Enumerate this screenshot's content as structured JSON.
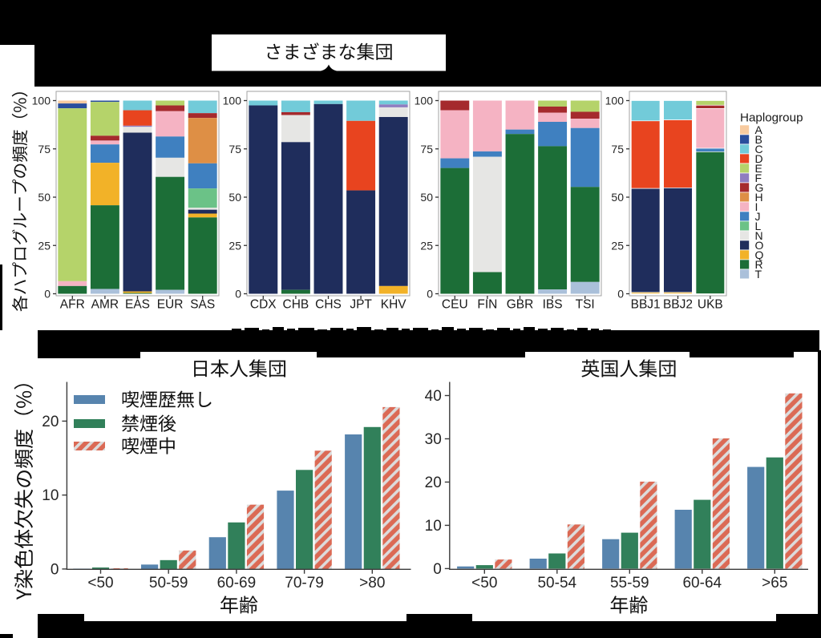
{
  "figure": {
    "background": "#ffffff",
    "redaction_color": "#000000",
    "annotation": {
      "label": "さまざまな集団"
    }
  },
  "chart_data": [
    {
      "type": "bar",
      "stacked": true,
      "title": "さまざまな集団",
      "ylabel": "各ハプログループの頻度（%）",
      "ylim": [
        0,
        100
      ],
      "yticks": [
        0,
        25,
        50,
        75,
        100
      ],
      "grid": false,
      "legend_position": "right",
      "legend_title": "Haplogroup",
      "haplogroups": [
        "A",
        "B",
        "C",
        "D",
        "E",
        "F",
        "G",
        "H",
        "I",
        "J",
        "L",
        "N",
        "O",
        "Q",
        "R",
        "T"
      ],
      "colors": {
        "A": "#F8CBA0",
        "B": "#2A4E9C",
        "C": "#72CBD9",
        "D": "#E8441F",
        "E": "#B5D36A",
        "F": "#8F7DC0",
        "G": "#A52A2D",
        "H": "#DE8F45",
        "I": "#F5B3C3",
        "J": "#3F80C0",
        "L": "#6BC287",
        "N": "#E6E6E4",
        "O": "#1F2D5C",
        "Q": "#F2B228",
        "R": "#1C6E37",
        "T": "#AAC0DA"
      },
      "panels": [
        {
          "categories": [
            "AFR",
            "AMR",
            "EAS",
            "EUR",
            "SAS"
          ],
          "values": {
            "AFR": {
              "A": 1.5,
              "B": 2.5,
              "E": 89.5,
              "I": 2.5,
              "R": 4.0
            },
            "AMR": {
              "B": 0.7,
              "E": 17.5,
              "G": 2.5,
              "I": 2.0,
              "J": 9.5,
              "Q": 22.0,
              "R": 43.3,
              "T": 2.5
            },
            "EAS": {
              "C": 5.0,
              "D": 8.0,
              "F": 0.6,
              "N": 3.0,
              "O": 82.2,
              "Q": 0.8,
              "R": 0.4
            },
            "EUR": {
              "E": 2.5,
              "G": 3.0,
              "I": 13.1,
              "J": 11.0,
              "N": 9.9,
              "R": 58.5,
              "T": 2.0
            },
            "SAS": {
              "C": 6.5,
              "G": 2.5,
              "H": 23.5,
              "J": 13.0,
              "L": 10.0,
              "N": 1.0,
              "O": 2.0,
              "Q": 2.0,
              "R": 39.5
            }
          }
        },
        {
          "categories": [
            "CDX",
            "CHB",
            "CHS",
            "JPT",
            "KHV"
          ],
          "values": {
            "CDX": {
              "C": 2.5,
              "O": 97.5
            },
            "CHB": {
              "C": 6.0,
              "G": 1.5,
              "N": 14.0,
              "O": 76.5,
              "R": 2.0
            },
            "CHS": {
              "C": 1.8,
              "O": 98.2
            },
            "JPT": {
              "C": 10.5,
              "D": 36.0,
              "O": 53.5
            },
            "KHV": {
              "C": 2.0,
              "F": 1.5,
              "N": 5.0,
              "O": 87.5,
              "Q": 4.0
            }
          }
        },
        {
          "categories": [
            "CEU",
            "FIN",
            "GBR",
            "IBS",
            "TSI"
          ],
          "values": {
            "CEU": {
              "G": 5.0,
              "I": 24.9,
              "J": 5.0,
              "R": 65.1
            },
            "FIN": {
              "I": 26.3,
              "J": 2.8,
              "N": 59.7,
              "R": 11.2
            },
            "GBR": {
              "I": 15.0,
              "J": 2.3,
              "R": 82.7
            },
            "IBS": {
              "E": 3.1,
              "G": 3.2,
              "I": 4.7,
              "J": 12.6,
              "R": 74.2,
              "T": 2.2
            },
            "TSI": {
              "E": 5.8,
              "G": 3.6,
              "I": 4.8,
              "J": 30.5,
              "R": 49.2,
              "T": 6.1
            }
          }
        },
        {
          "categories": [
            "BBJ1",
            "BBJ2",
            "UKB"
          ],
          "values": {
            "BBJ1": {
              "C": 10.5,
              "D": 35.0,
              "O": 53.8,
              "Q": 0.7
            },
            "BBJ2": {
              "C": 10.0,
              "D": 35.2,
              "O": 54.1,
              "Q": 0.7
            },
            "UKB": {
              "E": 2.4,
              "G": 1.7,
              "I": 20.6,
              "J": 1.8,
              "R": 73.5
            }
          }
        }
      ]
    },
    {
      "type": "bar",
      "title": "日本人集団",
      "xlabel": "年齢",
      "ylabel": "Y染色体欠失の頻度（%）",
      "yticks": [
        0,
        10,
        20
      ],
      "categories": [
        "<50",
        "50-59",
        "60-69",
        "70-79",
        ">80"
      ],
      "legend_position": "upper left",
      "series": [
        {
          "name": "喫煙歴無し",
          "style": "solid",
          "color": "#5784AE",
          "values": [
            0.05,
            0.6,
            4.3,
            10.6,
            18.2
          ]
        },
        {
          "name": "禁煙後",
          "style": "solid",
          "color": "#31805A",
          "values": [
            0.2,
            1.2,
            6.3,
            13.4,
            19.2
          ]
        },
        {
          "name": "喫煙中",
          "style": "hatched",
          "color": "#DB6A55",
          "hatch_color": "#DCDCDC",
          "values": [
            0.1,
            2.5,
            8.7,
            16.0,
            21.9
          ]
        }
      ]
    },
    {
      "type": "bar",
      "title": "英国人集団",
      "xlabel": "年齢",
      "ylabel": "",
      "yticks": [
        0,
        10,
        20,
        30,
        40
      ],
      "categories": [
        "<50",
        "50-54",
        "55-59",
        "60-64",
        ">65"
      ],
      "series": [
        {
          "name": "喫煙歴無し",
          "style": "solid",
          "color": "#5784AE",
          "values": [
            0.5,
            2.3,
            6.8,
            13.6,
            23.5
          ]
        },
        {
          "name": "禁煙後",
          "style": "solid",
          "color": "#31805A",
          "values": [
            0.8,
            3.5,
            8.3,
            15.9,
            25.7
          ]
        },
        {
          "name": "喫煙中",
          "style": "hatched",
          "color": "#DB6A55",
          "hatch_color": "#DCDCDC",
          "values": [
            2.1,
            10.2,
            20.1,
            30.1,
            40.5
          ]
        }
      ]
    }
  ]
}
